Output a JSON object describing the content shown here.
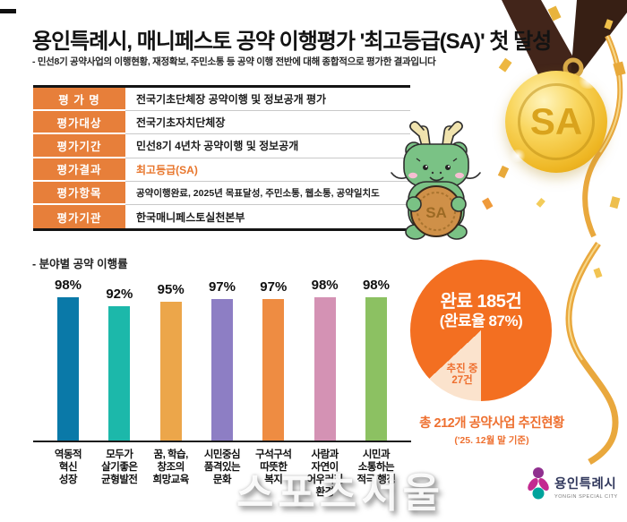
{
  "page": {
    "watermark": "스포츠서울"
  },
  "header": {
    "title": "용인특례시, 매니페스토 공약 이행평가 '최고등급(SA)' 첫 달성",
    "subtitle": "- 민선8기 공약사업의 이행현황, 재정확보, 주민소통 등 공약 이행 전반에 대해 종합적으로 평가한 결과입니다"
  },
  "medal": {
    "grade": "SA"
  },
  "mascot": {
    "coin_text": "SA"
  },
  "eval_table": {
    "header_bg": "#e77f3a",
    "highlight_color": "#e8762c",
    "rows": [
      {
        "label": "평 가 명",
        "value": "전국기초단체장 공약이행 및 정보공개 평가",
        "highlight": false
      },
      {
        "label": "평가대상",
        "value": "전국기초자치단체장",
        "highlight": false
      },
      {
        "label": "평가기간",
        "value": "민선8기 4년차 공약이행 및 정보공개",
        "highlight": false
      },
      {
        "label": "평가결과",
        "value": "최고등급(SA)",
        "highlight": true
      },
      {
        "label": "평가항목",
        "value": "공약이행완료, 2025년 목표달성, 주민소통, 웹소통, 공약일치도",
        "highlight": false
      },
      {
        "label": "평가기관",
        "value": "한국매니페스토실천본부",
        "highlight": false
      }
    ]
  },
  "chart_data": [
    {
      "type": "bar",
      "title": "- 분야별 공약 이행률",
      "categories": [
        "역동적\n혁신\n성장",
        "모두가\n살기좋은\n균형발전",
        "꿈, 학습,\n창조의\n희망교육",
        "시민중심\n품격있는\n문화",
        "구석구석\n따뜻한\n복지",
        "사람과\n자연이\n어우러진\n환경",
        "시민과\n소통하는\n적극 행정"
      ],
      "values": [
        98,
        92,
        95,
        97,
        97,
        98,
        98
      ],
      "unit": "%",
      "colors": [
        "#0a79a8",
        "#1cb8aa",
        "#eca64a",
        "#8d7ec4",
        "#ee8c42",
        "#d492b4",
        "#8cc162"
      ],
      "ylim": [
        0,
        100
      ],
      "grid": false,
      "legend": "none"
    },
    {
      "type": "pie",
      "slices": [
        {
          "name": "완료",
          "count": 185,
          "pct": 87,
          "color": "#f36f21"
        },
        {
          "name": "추진 중",
          "count": 27,
          "pct": 13,
          "color": "#fbe3cd"
        }
      ],
      "total_label_line1": "완료 185건",
      "total_label_line2": "(완료율 87%)",
      "small_slice_label": "추진 중\n27건",
      "caption_line1": "총 212개 공약사업 추진현황",
      "caption_line2": "('25. 12월 말 기준)",
      "caption_color": "#ee7030"
    }
  ],
  "footer_logo": {
    "name": "용인특례시",
    "subname": "YONGIN SPECIAL CITY"
  }
}
